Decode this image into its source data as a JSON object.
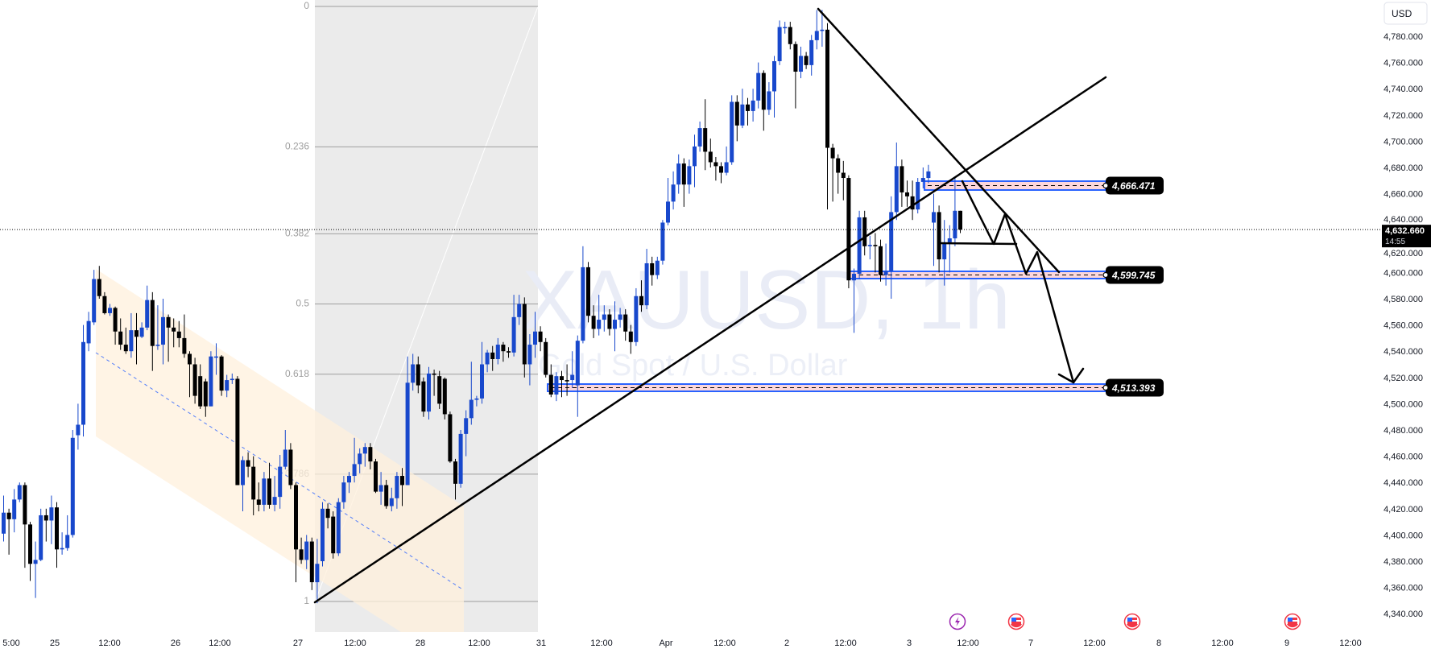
{
  "chart_data": {
    "type": "candlestick",
    "watermark_symbol": "XAUUSD, 1h",
    "watermark_description": "Gold Spot / U.S. Dollar",
    "currency": "USD",
    "ylim": [
      4326,
      4808
    ],
    "y_ticks": [
      "4,780.000",
      "4,760.000",
      "4,740.000",
      "4,720.000",
      "4,700.000",
      "4,680.000",
      "4,660.000",
      "4,640.000",
      "4,620.000",
      "4,600.000",
      "4,580.000",
      "4,560.000",
      "4,540.000",
      "4,520.000",
      "4,500.000",
      "4,480.000",
      "4,460.000",
      "4,440.000",
      "4,420.000",
      "4,400.000",
      "4,380.000",
      "4,360.000",
      "4,340.000"
    ],
    "x_ticks": [
      "5:00",
      "25",
      "12:00",
      "26",
      "12:00",
      "27",
      "12:00",
      "28",
      "12:00",
      "31",
      "12:00",
      "Apr",
      "12:00",
      "2",
      "12:00",
      "3",
      "12:00",
      "7",
      "12:00",
      "8",
      "12:00",
      "9",
      "12:00"
    ],
    "last_price": {
      "value": "4,632.660",
      "countdown": "14:55"
    },
    "colors": {
      "bull": "#1848cc",
      "bear": "#000000",
      "zone_border": "#2962ff",
      "zone_fill": "#fcd7db",
      "channel_fill": "#fff0dc",
      "fib_background": "#ebebeb"
    },
    "ohlc": [
      [
        4401,
        4430,
        4395,
        4417
      ],
      [
        4417,
        4420,
        4385,
        4412
      ],
      [
        4412,
        4435,
        4402,
        4427
      ],
      [
        4427,
        4440,
        4425,
        4438
      ],
      [
        4438,
        4440,
        4375,
        4408
      ],
      [
        4408,
        4410,
        4365,
        4378
      ],
      [
        4378,
        4395,
        4352,
        4381
      ],
      [
        4381,
        4420,
        4380,
        4415
      ],
      [
        4415,
        4420,
        4395,
        4411
      ],
      [
        4411,
        4430,
        4393,
        4421
      ],
      [
        4421,
        4425,
        4375,
        4389
      ],
      [
        4389,
        4402,
        4385,
        4390
      ],
      [
        4390,
        4415,
        4388,
        4400
      ],
      [
        4400,
        4480,
        4398,
        4474
      ],
      [
        4476,
        4500,
        4465,
        4484
      ],
      [
        4484,
        4560,
        4475,
        4547
      ],
      [
        4546,
        4570,
        4540,
        4563
      ],
      [
        4562,
        4602,
        4560,
        4595
      ],
      [
        4595,
        4605,
        4580,
        4582
      ],
      [
        4582,
        4585,
        4568,
        4569
      ],
      [
        4569,
        4576,
        4567,
        4573
      ],
      [
        4573,
        4574,
        4545,
        4555
      ],
      [
        4555,
        4565,
        4541,
        4545
      ],
      [
        4545,
        4558,
        4538,
        4540
      ],
      [
        4540,
        4569,
        4535,
        4556
      ],
      [
        4556,
        4569,
        4530,
        4551
      ],
      [
        4551,
        4562,
        4550,
        4558
      ],
      [
        4558,
        4590,
        4556,
        4579
      ],
      [
        4579,
        4585,
        4525,
        4544
      ],
      [
        4544,
        4575,
        4541,
        4545
      ],
      [
        4545,
        4580,
        4530,
        4566
      ],
      [
        4566,
        4568,
        4532,
        4558
      ],
      [
        4558,
        4565,
        4543,
        4555
      ],
      [
        4555,
        4563,
        4543,
        4550
      ],
      [
        4550,
        4568,
        4535,
        4538
      ],
      [
        4538,
        4540,
        4505,
        4530
      ],
      [
        4530,
        4535,
        4500,
        4506
      ],
      [
        4521,
        4530,
        4496,
        4498
      ],
      [
        4517,
        4519,
        4490,
        4498
      ],
      [
        4498,
        4540,
        4498,
        4536
      ],
      [
        4536,
        4546,
        4522,
        4536
      ],
      [
        4536,
        4537,
        4506,
        4510
      ],
      [
        4510,
        4522,
        4505,
        4518
      ],
      [
        4518,
        4523,
        4515,
        4519
      ],
      [
        4519,
        4521,
        4438,
        4438
      ],
      [
        4438,
        4460,
        4418,
        4457
      ],
      [
        4457,
        4463,
        4444,
        4452
      ],
      [
        4452,
        4460,
        4415,
        4427
      ],
      [
        4427,
        4440,
        4418,
        4423
      ],
      [
        4423,
        4448,
        4418,
        4443
      ],
      [
        4443,
        4455,
        4420,
        4423
      ],
      [
        4423,
        4445,
        4418,
        4429
      ],
      [
        4429,
        4461,
        4420,
        4452
      ],
      [
        4452,
        4480,
        4450,
        4465
      ],
      [
        4465,
        4470,
        4435,
        4438
      ],
      [
        4438,
        4440,
        4364,
        4389
      ],
      [
        4389,
        4398,
        4378,
        4381
      ],
      [
        4381,
        4400,
        4374,
        4395
      ],
      [
        4395,
        4398,
        4358,
        4364
      ],
      [
        4364,
        4397,
        4348,
        4378
      ],
      [
        4380,
        4425,
        4376,
        4420
      ],
      [
        4420,
        4424,
        4405,
        4413
      ],
      [
        4414,
        4418,
        4382,
        4386
      ],
      [
        4386,
        4428,
        4384,
        4425
      ],
      [
        4425,
        4445,
        4420,
        4440
      ],
      [
        4440,
        4448,
        4432,
        4445
      ],
      [
        4445,
        4474,
        4440,
        4454
      ],
      [
        4454,
        4466,
        4447,
        4462
      ],
      [
        4462,
        4470,
        4452,
        4467
      ],
      [
        4467,
        4470,
        4450,
        4456
      ],
      [
        4456,
        4458,
        4432,
        4433
      ],
      [
        4433,
        4448,
        4423,
        4438
      ],
      [
        4438,
        4442,
        4420,
        4422
      ],
      [
        4422,
        4436,
        4418,
        4428
      ],
      [
        4428,
        4448,
        4420,
        4445
      ],
      [
        4445,
        4451,
        4422,
        4438
      ],
      [
        4438,
        4536,
        4438,
        4516
      ],
      [
        4516,
        4538,
        4510,
        4530
      ],
      [
        4530,
        4536,
        4508,
        4514
      ],
      [
        4517,
        4520,
        4490,
        4494
      ],
      [
        4494,
        4528,
        4488,
        4523
      ],
      [
        4523,
        4526,
        4506,
        4522
      ],
      [
        4521,
        4525,
        4496,
        4500
      ],
      [
        4519,
        4520,
        4488,
        4492
      ],
      [
        4492,
        4494,
        4455,
        4456
      ],
      [
        4456,
        4458,
        4427,
        4439
      ],
      [
        4439,
        4480,
        4436,
        4477
      ],
      [
        4477,
        4495,
        4460,
        4489
      ],
      [
        4489,
        4532,
        4484,
        4503
      ],
      [
        4503,
        4506,
        4498,
        4504
      ],
      [
        4504,
        4547,
        4500,
        4530
      ],
      [
        4530,
        4541,
        4524,
        4539
      ],
      [
        4539,
        4544,
        4525,
        4534
      ],
      [
        4534,
        4550,
        4530,
        4545
      ],
      [
        4545,
        4547,
        4532,
        4540
      ],
      [
        4540,
        4543,
        4535,
        4539
      ],
      [
        4539,
        4583,
        4536,
        4566
      ],
      [
        4566,
        4583,
        4560,
        4576
      ],
      [
        4576,
        4581,
        4520,
        4530
      ],
      [
        4530,
        4553,
        4514,
        4545
      ],
      [
        4545,
        4570,
        4535,
        4555
      ],
      [
        4555,
        4559,
        4540,
        4547
      ],
      [
        4547,
        4550,
        4520,
        4522
      ],
      [
        4522,
        4530,
        4505,
        4507
      ],
      [
        4507,
        4524,
        4502,
        4521
      ],
      [
        4521,
        4525,
        4505,
        4518
      ],
      [
        4518,
        4530,
        4506,
        4517
      ],
      [
        4518,
        4540,
        4512,
        4522
      ],
      [
        4514,
        4552,
        4490,
        4548
      ],
      [
        4548,
        4620,
        4546,
        4604
      ],
      [
        4604,
        4608,
        4562,
        4567
      ],
      [
        4567,
        4575,
        4550,
        4557
      ],
      [
        4557,
        4583,
        4552,
        4564
      ],
      [
        4564,
        4575,
        4555,
        4568
      ],
      [
        4568,
        4572,
        4552,
        4557
      ],
      [
        4557,
        4578,
        4540,
        4564
      ],
      [
        4564,
        4573,
        4558,
        4568
      ],
      [
        4568,
        4572,
        4548,
        4555
      ],
      [
        4555,
        4560,
        4538,
        4547
      ],
      [
        4547,
        4588,
        4544,
        4582
      ],
      [
        4582,
        4594,
        4570,
        4575
      ],
      [
        4575,
        4618,
        4572,
        4607
      ],
      [
        4607,
        4612,
        4590,
        4598
      ],
      [
        4598,
        4612,
        4595,
        4609
      ],
      [
        4609,
        4640,
        4606,
        4638
      ],
      [
        4638,
        4672,
        4636,
        4654
      ],
      [
        4654,
        4677,
        4648,
        4667
      ],
      [
        4667,
        4690,
        4660,
        4683
      ],
      [
        4683,
        4687,
        4650,
        4667
      ],
      [
        4667,
        4686,
        4660,
        4681
      ],
      [
        4681,
        4705,
        4665,
        4696
      ],
      [
        4696,
        4715,
        4692,
        4710
      ],
      [
        4710,
        4732,
        4678,
        4692
      ],
      [
        4692,
        4702,
        4680,
        4684
      ],
      [
        4684,
        4688,
        4670,
        4681
      ],
      [
        4681,
        4684,
        4668,
        4676
      ],
      [
        4676,
        4696,
        4674,
        4684
      ],
      [
        4684,
        4735,
        4682,
        4730
      ],
      [
        4730,
        4735,
        4700,
        4712
      ],
      [
        4712,
        4740,
        4710,
        4728
      ],
      [
        4728,
        4733,
        4712,
        4723
      ],
      [
        4723,
        4740,
        4715,
        4731
      ],
      [
        4731,
        4760,
        4725,
        4752
      ],
      [
        4752,
        4754,
        4708,
        4724
      ],
      [
        4724,
        4745,
        4720,
        4738
      ],
      [
        4738,
        4765,
        4718,
        4761
      ],
      [
        4761,
        4792,
        4758,
        4787
      ],
      [
        4787,
        4791,
        4782,
        4787
      ],
      [
        4787,
        4791,
        4770,
        4774
      ],
      [
        4774,
        4776,
        4725,
        4753
      ],
      [
        4753,
        4772,
        4748,
        4765
      ],
      [
        4765,
        4768,
        4755,
        4758
      ],
      [
        4758,
        4781,
        4750,
        4777
      ],
      [
        4777,
        4800,
        4770,
        4784
      ],
      [
        4784,
        4800,
        4772,
        4785
      ],
      [
        4785,
        4790,
        4648,
        4695
      ],
      [
        4695,
        4698,
        4654,
        4687
      ],
      [
        4687,
        4690,
        4660,
        4676
      ],
      [
        4676,
        4685,
        4655,
        4672
      ],
      [
        4672,
        4674,
        4588,
        4594
      ],
      [
        4594,
        4603,
        4554,
        4599
      ],
      [
        4599,
        4647,
        4595,
        4642
      ],
      [
        4642,
        4647,
        4613,
        4620
      ],
      [
        4620,
        4628,
        4610,
        4621
      ],
      [
        4621,
        4630,
        4600,
        4620
      ],
      [
        4620,
        4625,
        4593,
        4598
      ],
      [
        4598,
        4622,
        4590,
        4601
      ],
      [
        4601,
        4658,
        4580,
        4646
      ],
      [
        4646,
        4699,
        4640,
        4681
      ],
      [
        4681,
        4686,
        4650,
        4661
      ],
      [
        4661,
        4670,
        4650,
        4658
      ],
      [
        4658,
        4670,
        4640,
        4648
      ],
      [
        4648,
        4672,
        4645,
        4669
      ],
      [
        4669,
        4680,
        4664,
        4672
      ],
      [
        4672,
        4682,
        4668,
        4677
      ],
      [
        4638,
        4660,
        4605,
        4646
      ],
      [
        4646,
        4651,
        4600,
        4610
      ],
      [
        4610,
        4640,
        4590,
        4623
      ],
      [
        4623,
        4636,
        4600,
        4626
      ],
      [
        4626,
        4672,
        4620,
        4647
      ],
      [
        4647,
        4647,
        4630,
        4632.66
      ]
    ]
  },
  "drawings": {
    "fib_levels": [
      {
        "label": "0",
        "ratio": 0
      },
      {
        "label": "0.236",
        "ratio": 0.236
      },
      {
        "label": "0.382",
        "ratio": 0.382
      },
      {
        "label": "0.5",
        "ratio": 0.5
      },
      {
        "label": "0.618",
        "ratio": 0.618
      },
      {
        "label": "0.786",
        "ratio": 0.786
      },
      {
        "label": "1",
        "ratio": 1
      }
    ],
    "zones": [
      {
        "label": "4,666.471",
        "price": 4666.471
      },
      {
        "label": "4,599.745",
        "price": 4599.745
      },
      {
        "label": "4,513.393",
        "price": 4513.393
      }
    ]
  },
  "events": [
    {
      "icon": "lightning-icon",
      "color": "#9c27b0"
    },
    {
      "icon": "us-flag-icon",
      "color": "#f23645"
    },
    {
      "icon": "us-flag-icon",
      "color": "#f23645"
    },
    {
      "icon": "us-flag-icon",
      "color": "#f23645"
    }
  ]
}
